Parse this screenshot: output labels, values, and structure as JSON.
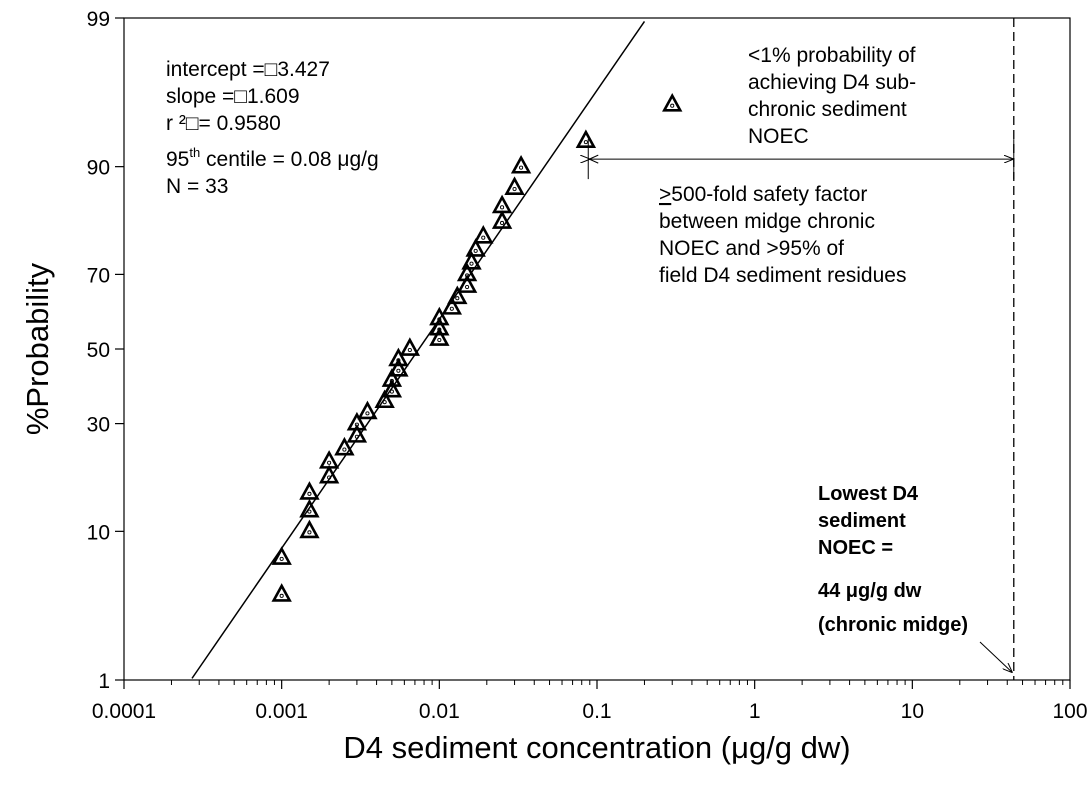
{
  "chart_data": {
    "type": "scatter",
    "title": "",
    "xlabel": "D4 sediment concentration (μg/g dw)",
    "ylabel": "%Probability",
    "x_scale": "log",
    "y_scale": "probability",
    "xlim": [
      0.0001,
      100
    ],
    "ylim": [
      1,
      99
    ],
    "x_ticks": [
      {
        "value": 0.0001,
        "label": "0.0001"
      },
      {
        "value": 0.001,
        "label": "0.001"
      },
      {
        "value": 0.01,
        "label": "0.01"
      },
      {
        "value": 0.1,
        "label": "0.1"
      },
      {
        "value": 1,
        "label": "1"
      },
      {
        "value": 10,
        "label": "10"
      },
      {
        "value": 100,
        "label": "100"
      }
    ],
    "y_ticks": [
      {
        "value": 1,
        "label": "1"
      },
      {
        "value": 10,
        "label": "10"
      },
      {
        "value": 30,
        "label": "30"
      },
      {
        "value": 50,
        "label": "50"
      },
      {
        "value": 70,
        "label": "70"
      },
      {
        "value": 90,
        "label": "90"
      },
      {
        "value": 99,
        "label": "99"
      }
    ],
    "grid": false,
    "legend": "none",
    "marker_color": "#000000",
    "points": [
      {
        "x": 0.001,
        "y": 4.2
      },
      {
        "x": 0.001,
        "y": 7.1
      },
      {
        "x": 0.0015,
        "y": 10.0
      },
      {
        "x": 0.0015,
        "y": 12.8
      },
      {
        "x": 0.0015,
        "y": 15.6
      },
      {
        "x": 0.002,
        "y": 18.5
      },
      {
        "x": 0.002,
        "y": 21.4
      },
      {
        "x": 0.0025,
        "y": 24.2
      },
      {
        "x": 0.003,
        "y": 27.1
      },
      {
        "x": 0.003,
        "y": 30.0
      },
      {
        "x": 0.0035,
        "y": 32.8
      },
      {
        "x": 0.0045,
        "y": 35.7
      },
      {
        "x": 0.005,
        "y": 38.5
      },
      {
        "x": 0.005,
        "y": 41.4
      },
      {
        "x": 0.0055,
        "y": 44.2
      },
      {
        "x": 0.0055,
        "y": 47.1
      },
      {
        "x": 0.0065,
        "y": 50.0
      },
      {
        "x": 0.01,
        "y": 52.8
      },
      {
        "x": 0.01,
        "y": 55.7
      },
      {
        "x": 0.01,
        "y": 58.5
      },
      {
        "x": 0.012,
        "y": 61.4
      },
      {
        "x": 0.013,
        "y": 64.2
      },
      {
        "x": 0.015,
        "y": 67.1
      },
      {
        "x": 0.015,
        "y": 70.0
      },
      {
        "x": 0.016,
        "y": 72.8
      },
      {
        "x": 0.017,
        "y": 75.7
      },
      {
        "x": 0.019,
        "y": 78.5
      },
      {
        "x": 0.025,
        "y": 81.4
      },
      {
        "x": 0.025,
        "y": 84.2
      },
      {
        "x": 0.03,
        "y": 87.1
      },
      {
        "x": 0.033,
        "y": 90.0
      },
      {
        "x": 0.085,
        "y": 92.8
      },
      {
        "x": 0.3,
        "y": 95.7
      }
    ],
    "regression_line": {
      "intercept": 3.427,
      "slope": 1.609,
      "x_from": 0.00027,
      "x_to": 0.2
    },
    "stats_text": {
      "intercept": "intercept =□3.427",
      "slope": "slope =□1.609",
      "r2_prefix": "r ²",
      "r2_value": "□= 0.9580",
      "centile_prefix": "95",
      "centile_sup": "th",
      "centile_rest": " centile = 0.08 μg/g",
      "n": "N = 33"
    },
    "annotation_prob": [
      "<1% probability of",
      "achieving D4 sub-",
      "chronic sediment",
      "NOEC"
    ],
    "annotation_safety": {
      "first_underlined": ">",
      "first_rest": "500-fold safety factor",
      "lines": [
        "between midge chronic",
        "NOEC and >95% of",
        "field D4 sediment residues"
      ]
    },
    "safety_arrow": {
      "from_x": 0.088,
      "to_x": 44,
      "at_y": 90.9
    },
    "noec_line": {
      "x": 44
    },
    "noec_label": {
      "color": "#1f1fe0",
      "lines": [
        "Lowest D4",
        "sediment",
        "NOEC =",
        "44 μg/g dw",
        "(chronic midge)"
      ]
    }
  }
}
